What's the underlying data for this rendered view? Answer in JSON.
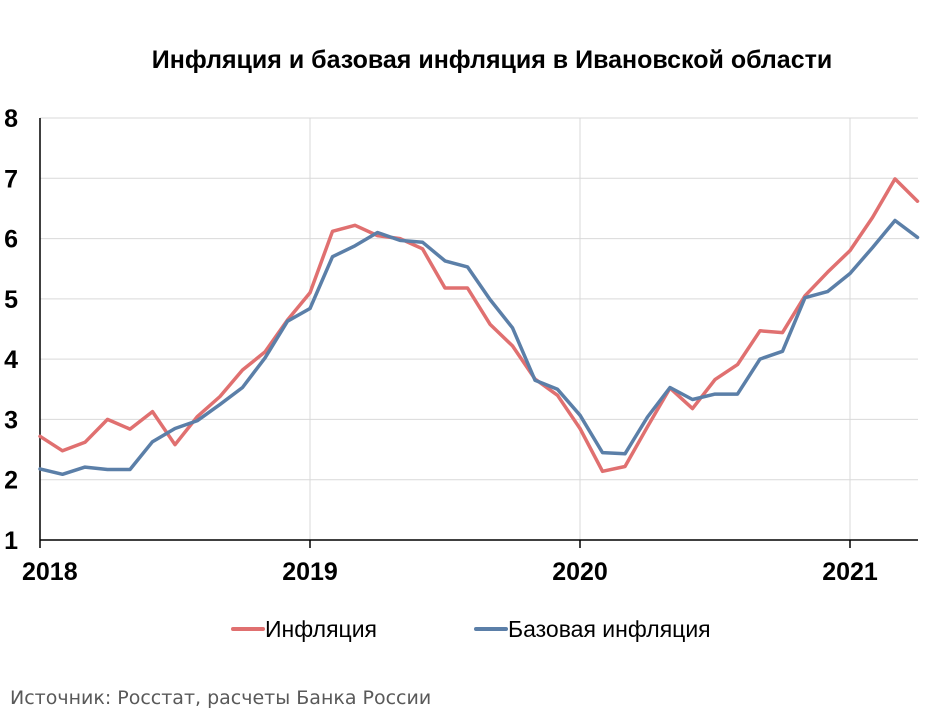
{
  "chart_data": {
    "type": "line",
    "title": "Инфляция и базовая инфляция в Ивановской области",
    "xlabel": "",
    "ylabel": "",
    "ylim": [
      1,
      8
    ],
    "yticks": [
      "1",
      "2",
      "3",
      "4",
      "5",
      "6",
      "7",
      "8"
    ],
    "xtick_labels": [
      "2018",
      "2019",
      "2020",
      "2021"
    ],
    "x_start": "2018-01",
    "x_end": "2021-03",
    "grid": true,
    "legend_position": "bottom",
    "series": [
      {
        "name": "Инфляция",
        "color": "#e07070",
        "values": [
          2.72,
          2.48,
          2.62,
          3.0,
          2.84,
          3.13,
          2.58,
          3.05,
          3.38,
          3.82,
          4.12,
          4.65,
          5.1,
          6.12,
          6.22,
          6.05,
          6.0,
          5.83,
          5.18,
          5.18,
          4.58,
          4.22,
          3.67,
          3.4,
          2.85,
          2.14,
          2.22,
          2.88,
          3.52,
          3.18,
          3.66,
          3.91,
          4.47,
          4.44,
          5.05,
          5.44,
          5.8,
          6.35,
          6.99,
          6.62
        ]
      },
      {
        "name": "Базовая инфляция",
        "color": "#5b7fa8",
        "values": [
          2.18,
          2.09,
          2.21,
          2.17,
          2.17,
          2.63,
          2.85,
          2.98,
          3.25,
          3.53,
          4.02,
          4.63,
          4.84,
          5.7,
          5.88,
          6.1,
          5.97,
          5.94,
          5.63,
          5.53,
          4.99,
          4.52,
          3.65,
          3.5,
          3.07,
          2.45,
          2.43,
          3.04,
          3.53,
          3.33,
          3.42,
          3.42,
          4.0,
          4.13,
          5.02,
          5.12,
          5.42,
          5.85,
          6.3,
          6.02
        ]
      }
    ]
  },
  "source_note": "Источник: Росстат, расчеты Банка России"
}
